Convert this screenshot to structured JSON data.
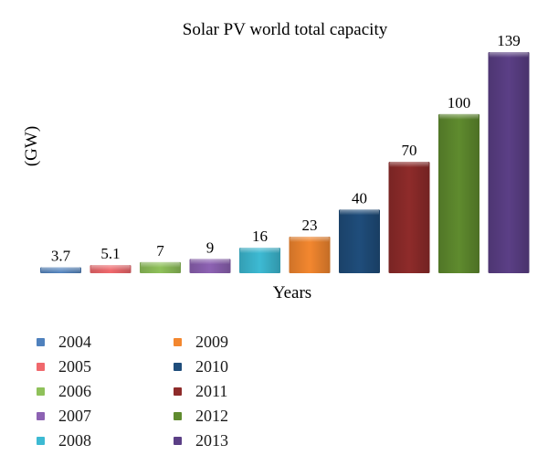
{
  "chart_data": {
    "type": "bar",
    "title": "Solar PV world total capacity",
    "xlabel": "Years",
    "ylabel": "(GW)",
    "categories": [
      "2004",
      "2005",
      "2006",
      "2007",
      "2008",
      "2009",
      "2010",
      "2011",
      "2012",
      "2013"
    ],
    "values": [
      3.7,
      5.1,
      7,
      9,
      16,
      23,
      40,
      70,
      100,
      139
    ],
    "value_labels": [
      "3.7",
      "5.1",
      "7",
      "9",
      "16",
      "23",
      "40",
      "70",
      "100",
      "139"
    ],
    "colors": [
      "#4f81bd",
      "#f0686c",
      "#8fc15a",
      "#8d62b3",
      "#3dbad3",
      "#f3872f",
      "#1f4d7b",
      "#8e2b2a",
      "#5f8b2e",
      "#5b3f86"
    ],
    "ylim": [
      0,
      139
    ],
    "grid": false,
    "legend": "bottom-left"
  }
}
